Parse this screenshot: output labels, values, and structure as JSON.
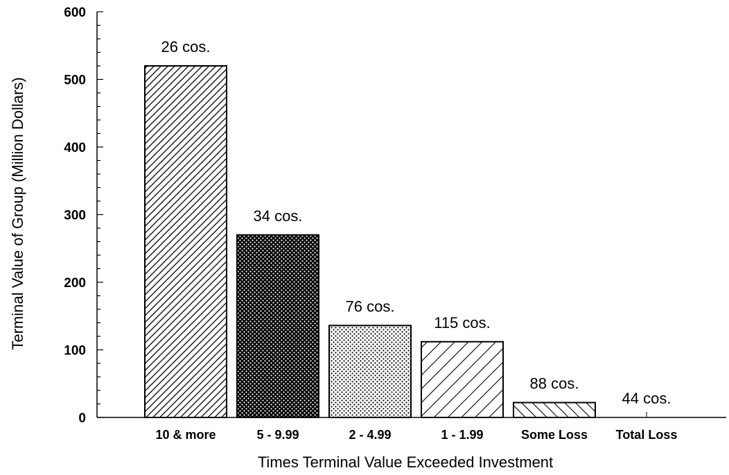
{
  "chart_data": {
    "type": "bar",
    "xlabel": "Times Terminal Value Exceeded Investment",
    "ylabel": "Terminal Value of Group (Million Dollars)",
    "ylim": [
      0,
      600
    ],
    "yticks": [
      0,
      100,
      200,
      300,
      400,
      500,
      600
    ],
    "grid": false,
    "categories": [
      "10 & more",
      "5 - 9.99",
      "2 - 4.99",
      "1 - 1.99",
      "Some Loss",
      "Total Loss"
    ],
    "values": [
      520,
      270,
      136,
      112,
      22,
      0
    ],
    "data_labels": [
      "26 cos.",
      "34 cos.",
      "76 cos.",
      "115 cos.",
      "88 cos.",
      "44 cos."
    ],
    "patterns": [
      "diagonal-dense",
      "crosshatch-dark",
      "dots-light",
      "diagonal-wide",
      "diagonal-reverse",
      "none"
    ]
  }
}
